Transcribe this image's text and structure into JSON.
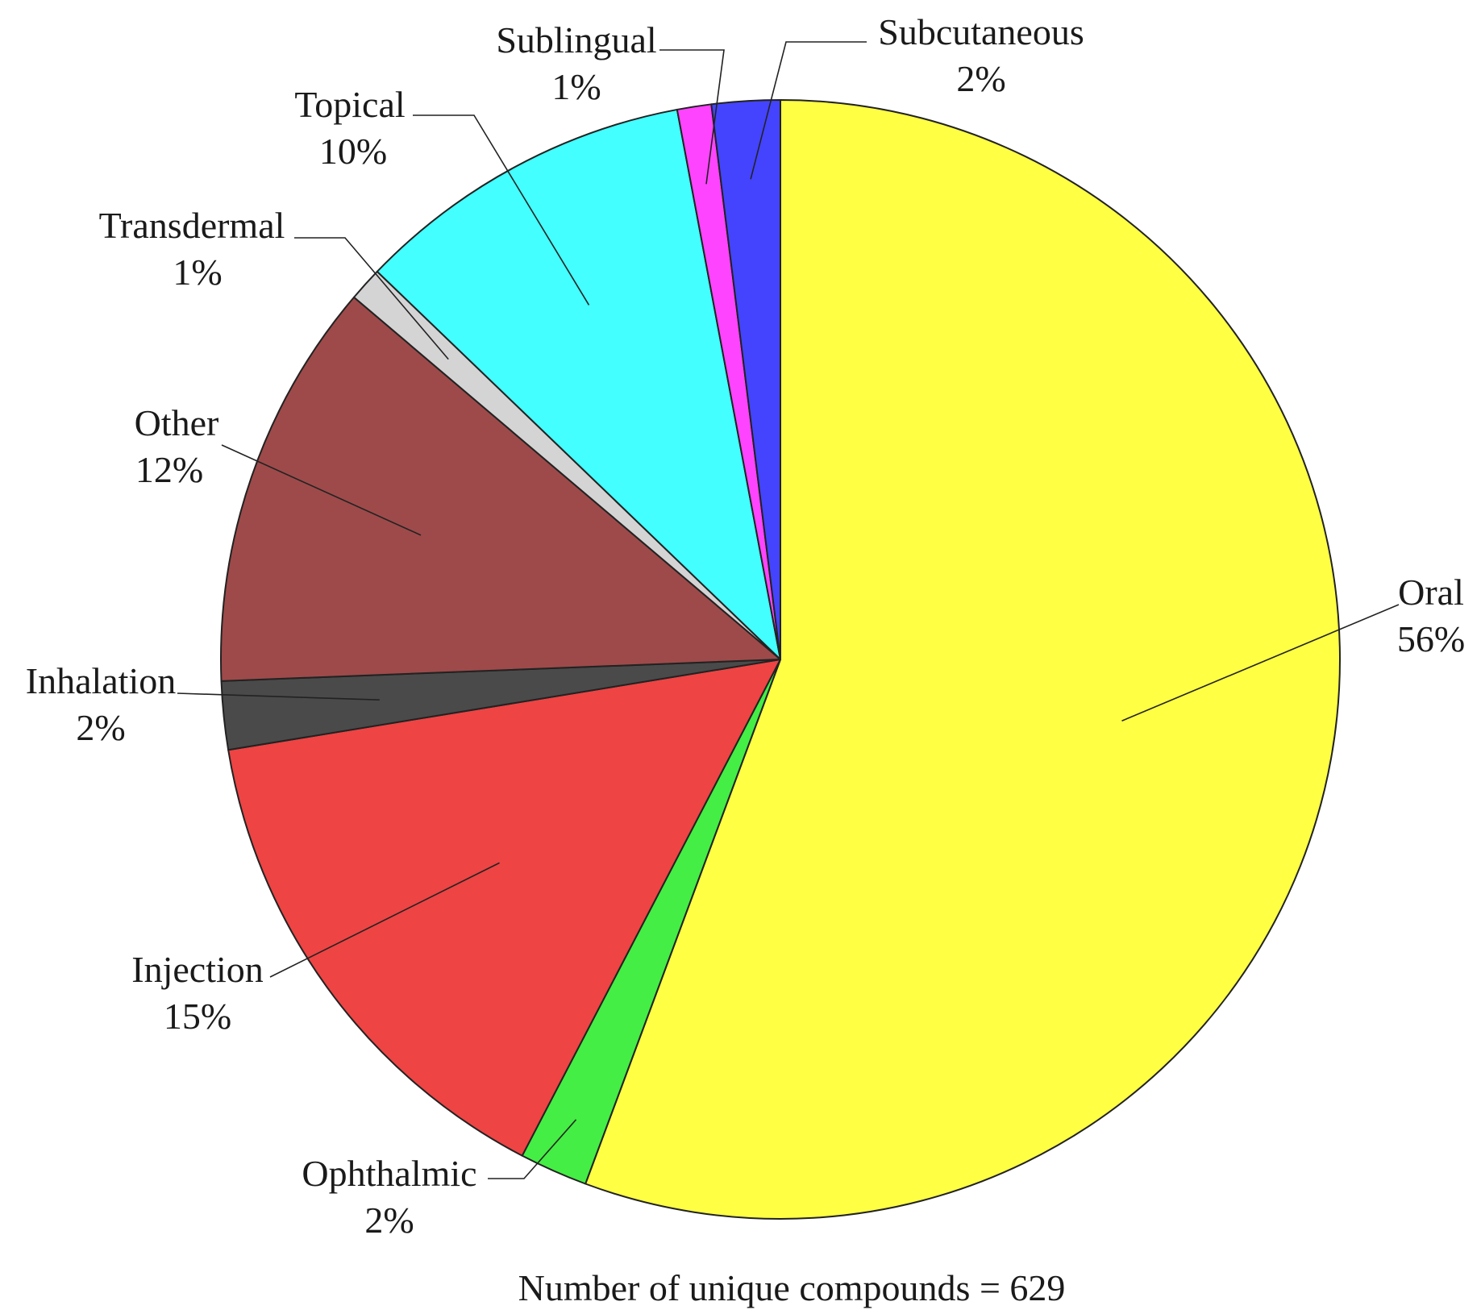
{
  "chart_data": {
    "type": "pie",
    "title": "",
    "note": "Number of unique compounds = 629",
    "total_compounds": 629,
    "categories": [
      "Oral",
      "Ophthalmic",
      "Injection",
      "Inhalation",
      "Other",
      "Transdermal",
      "Topical",
      "Sublingual",
      "Subcutaneous"
    ],
    "values": [
      56.5,
      2,
      15,
      2,
      12,
      1,
      10,
      1,
      2
    ],
    "value_labels": [
      "56%",
      "2%",
      "15%",
      "2%",
      "12%",
      "1%",
      "10%",
      "1%",
      "2%"
    ],
    "colors": [
      "#ffff44",
      "#44ee44",
      "#ee4444",
      "#4a4a4a",
      "#9e4a4a",
      "#d4d4d4",
      "#44ffff",
      "#ff44ff",
      "#4444ff"
    ],
    "start_angle_deg": 0,
    "direction": "clockwise"
  }
}
